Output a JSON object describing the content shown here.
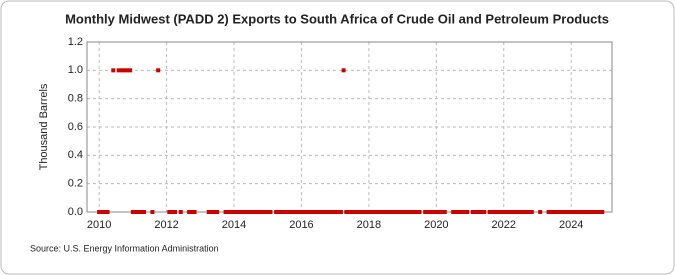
{
  "chart_data": {
    "type": "scatter",
    "title": "Monthly Midwest (PADD 2) Exports to South Africa of Crude Oil and Petroleum Products",
    "y_label": "Thousand Barrels",
    "source": "Source: U.S. Energy Information Administration",
    "color": "#cc0000",
    "grid": true,
    "xlim": [
      2009.64,
      2025.21
    ],
    "xticks": [
      2010,
      2012,
      2014,
      2016,
      2018,
      2020,
      2022,
      2024
    ],
    "ylim": [
      0,
      1.2
    ],
    "yticks": [
      {
        "value": 0,
        "label": "0.0"
      },
      {
        "value": 0.2,
        "label": "0.2"
      },
      {
        "value": 0.4,
        "label": "0.4"
      },
      {
        "value": 0.6,
        "label": "0.6"
      },
      {
        "value": 0.8,
        "label": "0.8"
      },
      {
        "value": 1,
        "label": "1.0"
      },
      {
        "value": 1.2,
        "label": "1.2"
      }
    ],
    "x": [
      2010,
      2010.08,
      2010.17,
      2010.25,
      2010.42,
      2010.58,
      2010.67,
      2010.75,
      2010.83,
      2010.92,
      2011,
      2011.08,
      2011.17,
      2011.25,
      2011.33,
      2011.58,
      2011.75,
      2012.08,
      2012.17,
      2012.25,
      2012.42,
      2012.67,
      2012.75,
      2012.83,
      2013.25,
      2013.33,
      2013.42,
      2013.5,
      2013.75,
      2013.83,
      2013.92,
      2014,
      2014.08,
      2014.17,
      2014.25,
      2014.33,
      2014.42,
      2014.5,
      2014.58,
      2014.67,
      2014.75,
      2014.83,
      2014.92,
      2015,
      2015.08,
      2015.25,
      2015.33,
      2015.42,
      2015.5,
      2015.58,
      2015.67,
      2015.75,
      2015.83,
      2015.92,
      2016,
      2016.08,
      2016.17,
      2016.25,
      2016.33,
      2016.42,
      2016.5,
      2016.58,
      2016.67,
      2016.75,
      2016.83,
      2016.92,
      2017,
      2017.08,
      2017.17,
      2017.25,
      2017.33,
      2017.42,
      2017.5,
      2017.58,
      2017.67,
      2017.75,
      2017.83,
      2017.92,
      2018,
      2018.08,
      2018.17,
      2018.25,
      2018.33,
      2018.42,
      2018.5,
      2018.58,
      2018.67,
      2018.75,
      2018.83,
      2018.92,
      2019,
      2019.08,
      2019.17,
      2019.25,
      2019.33,
      2019.42,
      2019.5,
      2019.67,
      2019.75,
      2019.83,
      2019.92,
      2020,
      2020.08,
      2020.17,
      2020.25,
      2020.5,
      2020.58,
      2020.67,
      2020.75,
      2020.83,
      2020.92,
      2021.08,
      2021.17,
      2021.25,
      2021.33,
      2021.42,
      2021.58,
      2021.67,
      2021.75,
      2021.83,
      2021.92,
      2022,
      2022.08,
      2022.17,
      2022.25,
      2022.33,
      2022.42,
      2022.5,
      2022.58,
      2022.67,
      2022.75,
      2022.83,
      2023.08,
      2023.33,
      2023.42,
      2023.5,
      2023.58,
      2023.67,
      2023.75,
      2023.83,
      2023.92,
      2024,
      2024.08,
      2024.17,
      2024.25,
      2024.33,
      2024.42,
      2024.5,
      2024.58,
      2024.67,
      2024.75,
      2024.83,
      2024.92
    ],
    "values": [
      0,
      0,
      0,
      0,
      1,
      1,
      1,
      1,
      1,
      1,
      0,
      0,
      0,
      0,
      0,
      0,
      1,
      0,
      0,
      0,
      0,
      0,
      0,
      0,
      0,
      0,
      0,
      0,
      0,
      0,
      0,
      0,
      0,
      0,
      0,
      0,
      0,
      0,
      0,
      0,
      0,
      0,
      0,
      0,
      0,
      0,
      0,
      0,
      0,
      0,
      0,
      0,
      0,
      0,
      0,
      0,
      0,
      0,
      0,
      0,
      0,
      0,
      0,
      0,
      0,
      0,
      0,
      0,
      0,
      1,
      0,
      0,
      0,
      0,
      0,
      0,
      0,
      0,
      0,
      0,
      0,
      0,
      0,
      0,
      0,
      0,
      0,
      0,
      0,
      0,
      0,
      0,
      0,
      0,
      0,
      0,
      0,
      0,
      0,
      0,
      0,
      0,
      0,
      0,
      0,
      0,
      0,
      0,
      0,
      0,
      0,
      0,
      0,
      0,
      0,
      0,
      0,
      0,
      0,
      0,
      0,
      0,
      0,
      0,
      0,
      0,
      0,
      0,
      0,
      0,
      0,
      0,
      0,
      0,
      0,
      0,
      0,
      0,
      0,
      0,
      0,
      0,
      0,
      0,
      0,
      0,
      0,
      0,
      0,
      0,
      0,
      0,
      0
    ]
  }
}
